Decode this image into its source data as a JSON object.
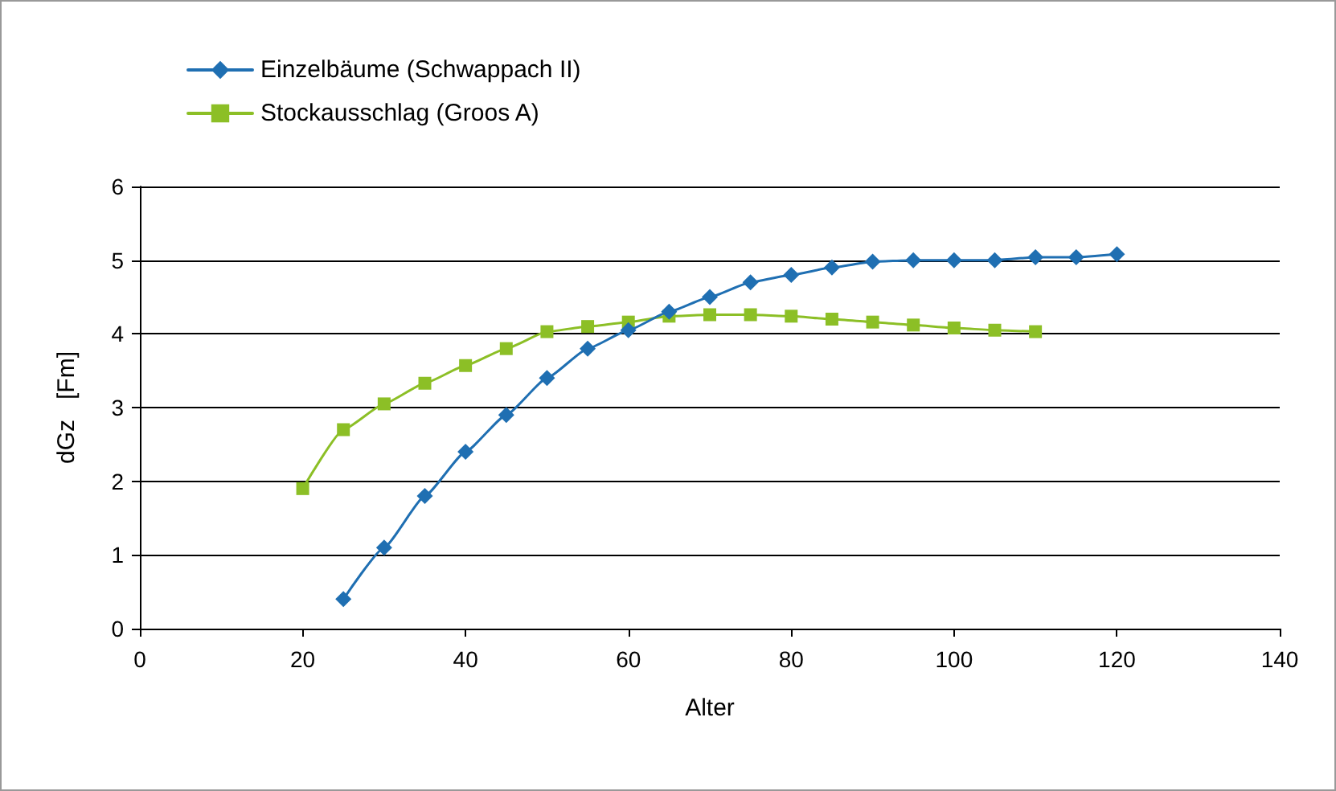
{
  "chart_data": {
    "type": "line",
    "xlabel": "Alter",
    "ylabel": "dGz   [Fm]",
    "xlim": [
      0,
      140
    ],
    "xticks": [
      0,
      20,
      40,
      60,
      80,
      100,
      120,
      140
    ],
    "ylim": [
      0,
      6
    ],
    "yticks": [
      0,
      1,
      2,
      3,
      4,
      5,
      6
    ],
    "grid": "y",
    "legend": "top left",
    "line_style": "solid",
    "series": [
      {
        "name": "Einzelbäume (Schwappach II)",
        "color": "#1f6fb2",
        "marker": "diamond",
        "x": [
          25,
          30,
          35,
          40,
          45,
          50,
          55,
          60,
          65,
          70,
          75,
          80,
          85,
          90,
          95,
          100,
          105,
          110,
          115,
          120
        ],
        "values": [
          0.4,
          1.1,
          1.8,
          2.4,
          2.9,
          3.4,
          3.8,
          4.05,
          4.3,
          4.5,
          4.7,
          4.8,
          4.9,
          4.98,
          5.0,
          5.0,
          5.0,
          5.04,
          5.04,
          5.08
        ]
      },
      {
        "name": "Stockausschlag (Groos A)",
        "color": "#8cbf26",
        "marker": "square",
        "x": [
          20,
          25,
          30,
          35,
          40,
          45,
          50,
          55,
          60,
          65,
          70,
          75,
          80,
          85,
          90,
          95,
          100,
          105,
          110
        ],
        "values": [
          1.9,
          2.7,
          3.05,
          3.33,
          3.57,
          3.8,
          4.03,
          4.1,
          4.16,
          4.24,
          4.26,
          4.26,
          4.24,
          4.2,
          4.16,
          4.12,
          4.08,
          4.05,
          4.03
        ]
      }
    ]
  }
}
